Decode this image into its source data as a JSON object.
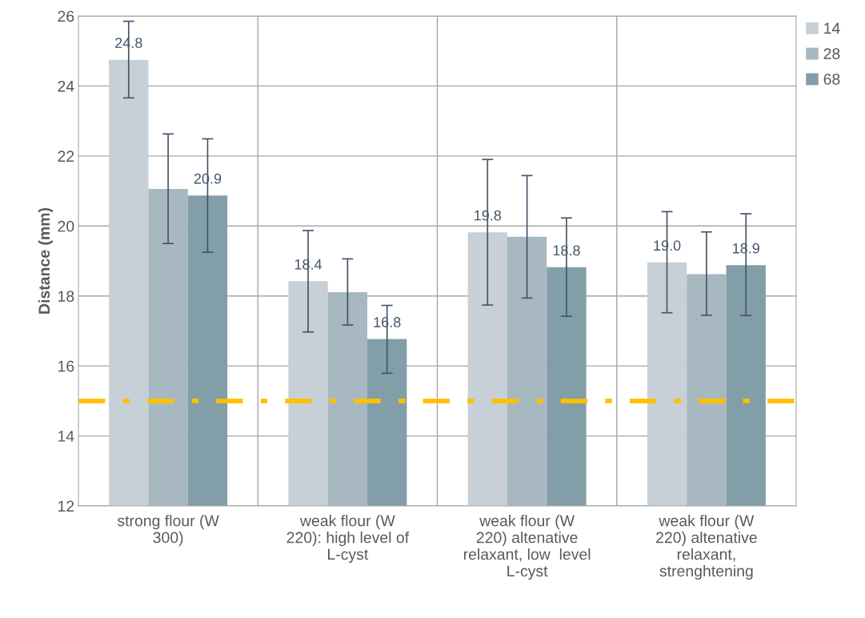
{
  "chart_data": {
    "type": "bar",
    "ylabel": "Distance (mm)",
    "categories": [
      "strong flour (W\n300)",
      "weak flour (W\n220): high level of\nL-cyst",
      "weak flour (W\n220) altenative\nrelaxant, low  level\nL-cyst",
      "weak flour (W\n220) altenative\nrelaxant,\nstrenghtening"
    ],
    "series": [
      {
        "name": "14",
        "color": "#c7d0d6",
        "values": [
          24.75,
          18.42,
          19.82,
          18.96
        ],
        "errors": [
          [
            23.66,
            25.85
          ],
          [
            16.97,
            19.87
          ],
          [
            17.74,
            21.9
          ],
          [
            17.52,
            20.41
          ]
        ],
        "value_labels": [
          "24.8",
          "18.4",
          "19.8",
          "19.0"
        ]
      },
      {
        "name": "28",
        "color": "#a8b8c0",
        "values": [
          21.06,
          18.11,
          19.69,
          18.62
        ],
        "errors": [
          [
            19.5,
            22.63
          ],
          [
            17.17,
            19.06
          ],
          [
            17.94,
            21.44
          ],
          [
            17.45,
            19.83
          ]
        ],
        "value_labels": [
          null,
          null,
          null,
          null
        ]
      },
      {
        "name": "68",
        "color": "#829ea9",
        "values": [
          20.87,
          16.77,
          18.82,
          18.88
        ],
        "errors": [
          [
            19.25,
            22.49
          ],
          [
            15.79,
            17.73
          ],
          [
            17.42,
            20.23
          ],
          [
            17.44,
            20.35
          ]
        ],
        "value_labels": [
          "20.9",
          "16.8",
          "18.8",
          "18.9"
        ]
      }
    ],
    "ylim": [
      12,
      26
    ],
    "yticks": [
      12,
      14,
      16,
      18,
      20,
      22,
      24,
      26
    ],
    "ref_lines": [
      {
        "axis": "y",
        "value": 15,
        "color": "#ffc000",
        "line_style": "dashed"
      }
    ],
    "grid": true,
    "legend": "top right"
  }
}
